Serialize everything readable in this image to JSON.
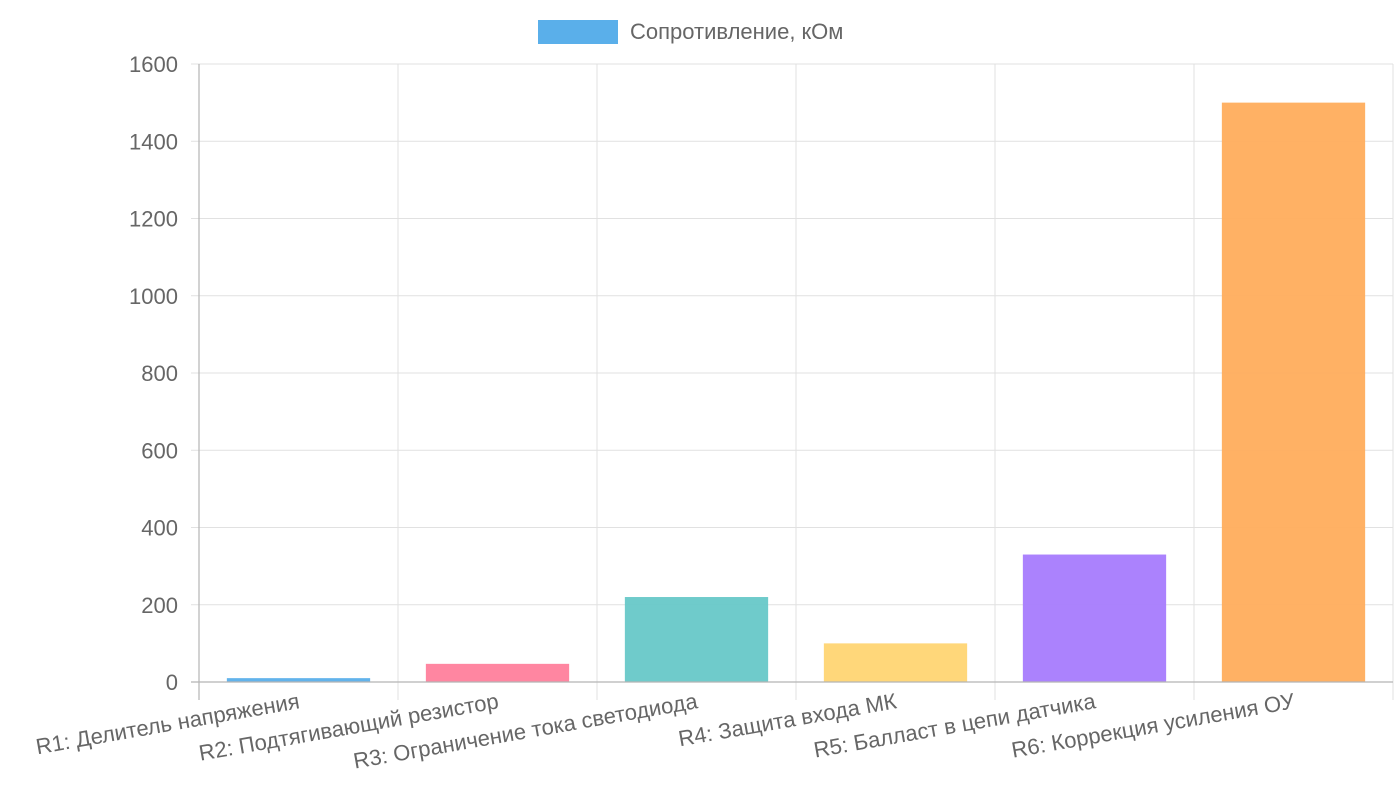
{
  "chart_data": {
    "type": "bar",
    "categories": [
      "R1: Делитель напряжения",
      "R2: Подтягивающий резистор",
      "R3: Ограничение тока светодиода",
      "R4: Защита входа МК",
      "R5: Балласт в цепи датчика",
      "R6: Коррекция усиления ОУ"
    ],
    "series": [
      {
        "name": "Сопротивление, кОм",
        "values": [
          10,
          47,
          220,
          100,
          330,
          1500
        ]
      }
    ],
    "bar_colors": [
      "#5aafea",
      "#ff7f9c",
      "#67c8c8",
      "#ffd573",
      "#a77bfd",
      "#ffad5c"
    ],
    "legend": {
      "label": "Сопротивление, кОм",
      "color": "#5aafea",
      "position": "top-center"
    },
    "ylim": [
      0,
      1600
    ],
    "yticks": [
      0,
      200,
      400,
      600,
      800,
      1000,
      1200,
      1400,
      1600
    ],
    "grid": true,
    "xlabel": "",
    "ylabel": ""
  }
}
